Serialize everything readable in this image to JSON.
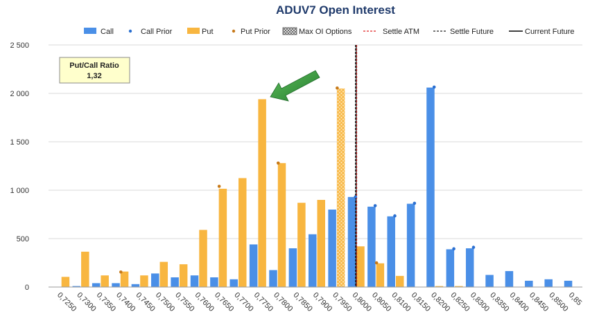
{
  "chart_data": {
    "type": "bar",
    "title": "ADUV7 Open Interest",
    "categories": [
      "0,7250",
      "0,7300",
      "0,7350",
      "0,7400",
      "0,7450",
      "0,7500",
      "0,7550",
      "0,7600",
      "0,7650",
      "0,7700",
      "0,7750",
      "0,7800",
      "0,7850",
      "0,7900",
      "0,7950",
      "0,8000",
      "0,8050",
      "0,8100",
      "0,8150",
      "0,8200",
      "0,8250",
      "0,8300",
      "0,8350",
      "0,8400",
      "0,8450",
      "0,8500",
      "0,85"
    ],
    "series": [
      {
        "name": "Call",
        "color": "#4a8fe7",
        "values": [
          0,
          10,
          40,
          40,
          30,
          140,
          100,
          120,
          100,
          80,
          440,
          175,
          400,
          545,
          800,
          930,
          830,
          730,
          860,
          2060,
          390,
          400,
          125,
          165,
          65,
          80,
          65
        ]
      },
      {
        "name": "Put",
        "color": "#f8b640",
        "values": [
          105,
          365,
          120,
          160,
          120,
          260,
          235,
          590,
          1015,
          1125,
          1940,
          1280,
          870,
          900,
          2050,
          420,
          245,
          115,
          0,
          10,
          10,
          0,
          0,
          0,
          0,
          0,
          0
        ]
      }
    ],
    "call_prior": [
      null,
      null,
      null,
      null,
      null,
      null,
      null,
      null,
      null,
      null,
      null,
      null,
      null,
      null,
      null,
      930,
      840,
      735,
      865,
      2065,
      395,
      410,
      null,
      null,
      null,
      null,
      null
    ],
    "put_prior": [
      null,
      null,
      null,
      155,
      null,
      null,
      null,
      null,
      1040,
      null,
      null,
      1280,
      null,
      null,
      2055,
      null,
      250,
      null,
      null,
      null,
      null,
      null,
      null,
      null,
      null,
      null,
      null
    ],
    "max_oi_index": 14,
    "settle_atm": 0.80015,
    "settle_future": 0.7998,
    "current_future": 0.8,
    "y_ticks": [
      "0",
      "500",
      "1 000",
      "1 500",
      "2 000",
      "2 500"
    ],
    "ylim": [
      0,
      2500
    ],
    "xlabel": "",
    "ylabel": "",
    "grid": true,
    "legend_position": "top-right",
    "legend": [
      "Call",
      "Call Prior",
      "Put",
      "Put Prior",
      "Max OI Options",
      "Settle ATM",
      "Settle Future",
      "Current Future"
    ],
    "annotation": {
      "label": "Put/Call Ratio",
      "value": "1,32"
    }
  },
  "colors": {
    "call": "#4a8fe7",
    "put": "#f8b640",
    "call_prior": "#2b6fd0",
    "put_prior": "#c77a1b",
    "settle_atm": "#e02020",
    "settle_future": "#222222",
    "current_future": "#000000",
    "arrow": "#2e8b3e",
    "title": "#1f3a6b"
  }
}
